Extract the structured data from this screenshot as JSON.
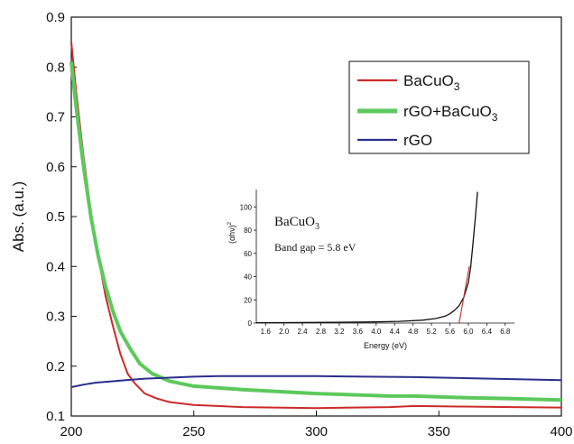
{
  "chart_data": [
    {
      "type": "line",
      "title": "",
      "xlabel": "",
      "ylabel": "Abs. (a.u.)",
      "xlim": [
        200,
        400
      ],
      "ylim": [
        0.1,
        0.9
      ],
      "x_ticks": [
        "200",
        "250",
        "300",
        "350",
        "400"
      ],
      "y_ticks": [
        "0.1",
        "0.2",
        "0.3",
        "0.4",
        "0.5",
        "0.6",
        "0.7",
        "0.8",
        "0.9"
      ],
      "grid": false,
      "legend": "top-right",
      "series": [
        {
          "name": "BaCuO",
          "name_sub": "3",
          "color": "#cc2a2a",
          "points": [
            [
              200,
              0.85
            ],
            [
              202,
              0.75
            ],
            [
              205,
              0.62
            ],
            [
              208,
              0.51
            ],
            [
              211,
              0.42
            ],
            [
              214,
              0.34
            ],
            [
              217,
              0.28
            ],
            [
              220,
              0.225
            ],
            [
              223,
              0.185
            ],
            [
              226,
              0.165
            ],
            [
              230,
              0.145
            ],
            [
              235,
              0.135
            ],
            [
              240,
              0.128
            ],
            [
              250,
              0.122
            ],
            [
              270,
              0.118
            ],
            [
              300,
              0.116
            ],
            [
              330,
              0.118
            ],
            [
              340,
              0.12
            ],
            [
              360,
              0.119
            ],
            [
              380,
              0.118
            ],
            [
              400,
              0.117
            ]
          ]
        },
        {
          "name": "rGO+BaCuO",
          "name_sub": "3",
          "color": "#5cc95c",
          "points": [
            [
              200,
              0.81
            ],
            [
              202,
              0.72
            ],
            [
              205,
              0.6
            ],
            [
              208,
              0.5
            ],
            [
              211,
              0.42
            ],
            [
              214,
              0.36
            ],
            [
              217,
              0.31
            ],
            [
              220,
              0.27
            ],
            [
              224,
              0.235
            ],
            [
              228,
              0.205
            ],
            [
              233,
              0.185
            ],
            [
              240,
              0.17
            ],
            [
              250,
              0.16
            ],
            [
              270,
              0.153
            ],
            [
              300,
              0.145
            ],
            [
              330,
              0.14
            ],
            [
              340,
              0.14
            ],
            [
              360,
              0.137
            ],
            [
              380,
              0.135
            ],
            [
              400,
              0.132
            ]
          ]
        },
        {
          "name": "rGO",
          "name_sub": "",
          "color": "#2b2e8c",
          "points": [
            [
              200,
              0.158
            ],
            [
              205,
              0.163
            ],
            [
              210,
              0.167
            ],
            [
              220,
              0.171
            ],
            [
              230,
              0.175
            ],
            [
              240,
              0.177
            ],
            [
              250,
              0.179
            ],
            [
              260,
              0.18
            ],
            [
              280,
              0.18
            ],
            [
              300,
              0.18
            ],
            [
              320,
              0.179
            ],
            [
              340,
              0.178
            ],
            [
              360,
              0.176
            ],
            [
              380,
              0.174
            ],
            [
              400,
              0.172
            ]
          ]
        }
      ]
    },
    {
      "type": "line",
      "title": "BaCuO",
      "title_sub": "3",
      "annotation": "Band gap = 5.8 eV",
      "xlabel": "Energy (eV)",
      "ylabel": "(αhν)",
      "ylabel_sup": "2",
      "xlim": [
        1.4,
        7.0
      ],
      "ylim": [
        0,
        115
      ],
      "x_ticks": [
        "1.6",
        "2.0",
        "2.4",
        "2.8",
        "3.2",
        "3.6",
        "4.0",
        "4.4",
        "4.8",
        "5.2",
        "5.6",
        "6.0",
        "6.4",
        "6.8"
      ],
      "y_ticks": [
        "0",
        "20",
        "40",
        "60",
        "80",
        "100"
      ],
      "series": [
        {
          "name": "",
          "color": "#111111",
          "points": [
            [
              1.4,
              0.3
            ],
            [
              2.0,
              0.4
            ],
            [
              3.0,
              0.6
            ],
            [
              4.0,
              1.0
            ],
            [
              4.5,
              1.5
            ],
            [
              5.0,
              2.5
            ],
            [
              5.3,
              4
            ],
            [
              5.5,
              6
            ],
            [
              5.6,
              8
            ],
            [
              5.7,
              11
            ],
            [
              5.8,
              15
            ],
            [
              5.9,
              22
            ],
            [
              6.0,
              35
            ],
            [
              6.05,
              48
            ],
            [
              6.1,
              68
            ],
            [
              6.15,
              90
            ],
            [
              6.2,
              113
            ]
          ]
        },
        {
          "name": "",
          "color": "#cc2a2a",
          "points": [
            [
              5.8,
              0
            ],
            [
              6.02,
              49
            ]
          ]
        }
      ]
    }
  ]
}
